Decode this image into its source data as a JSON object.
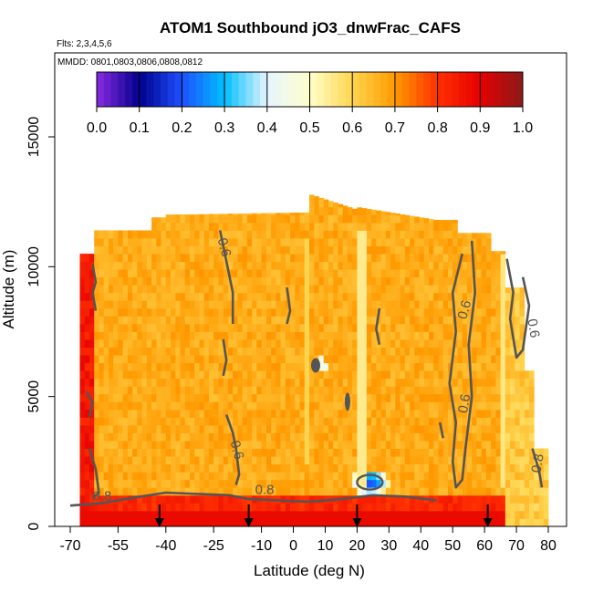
{
  "chart_data": {
    "type": "heatmap",
    "title": "ATOM1 Southbound jO3_dnwFrac_CAFS",
    "subtitle_flights": "Flts: 2,3,4,5,6",
    "subtitle_dates": "MMDD: 0801,0803,0806,0808,0812",
    "xlabel": "Latitude (deg N)",
    "ylabel": "Altitude (m)",
    "x_ticks": [
      "-70",
      "-55",
      "-40",
      "-25",
      "-10",
      "0",
      "10",
      "20",
      "30",
      "40",
      "50",
      "60",
      "70",
      "80"
    ],
    "y_ticks": [
      "0",
      "5000",
      "10000",
      "15000"
    ],
    "xlim": [
      -70,
      80
    ],
    "ylim": [
      0,
      17500
    ],
    "colorbar": {
      "range": [
        0.0,
        1.0
      ],
      "ticks": [
        "0.0",
        "0.1",
        "0.2",
        "0.3",
        "0.4",
        "0.5",
        "0.6",
        "0.7",
        "0.8",
        "0.9",
        "1.0"
      ],
      "colors": [
        "#8a2be2",
        "#00008b",
        "#1e50ff",
        "#00bfff",
        "#e6f4ff",
        "#ffffcc",
        "#ffd54f",
        "#ff9a00",
        "#ff3000",
        "#e60000",
        "#8b1a1a"
      ]
    },
    "contour_labels": [
      "0.6",
      "0.6",
      "0.6",
      "0.6",
      "0.6",
      "0.8",
      "0.8",
      "0.8"
    ],
    "profile_latitudes": [
      -42,
      -14,
      20,
      61
    ],
    "field_summary": {
      "background": 0.67,
      "low_altitude_layer": 0.88,
      "southern_edge": 0.85,
      "local_minimum_latitude": 24,
      "local_minimum_altitude": 1700,
      "local_minimum_value": 0.2
    }
  }
}
